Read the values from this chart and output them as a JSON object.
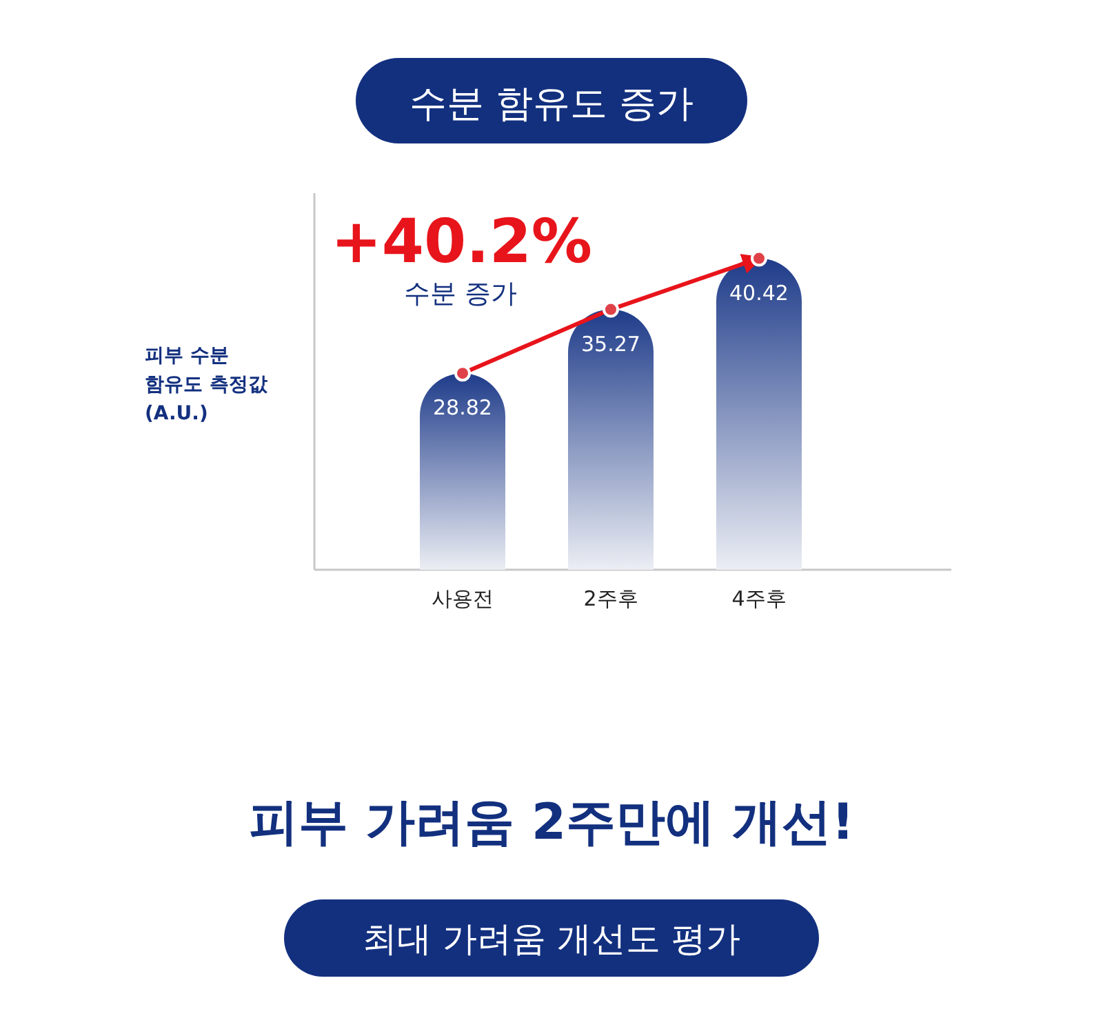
{
  "chart_data": {
    "type": "bar",
    "title": "수분 함유도 증가",
    "ylabel": "피부 수분\n함유도 측정값\n(A.U.)",
    "categories": [
      "사용전",
      "2주후",
      "4주후"
    ],
    "values": [
      28.82,
      35.27,
      40.42
    ],
    "color": "#1f3c8a",
    "ylim": [
      9,
      47
    ],
    "data_labels": true,
    "annotations": [
      "+40.2%",
      "수분 증가",
      "피부 가려움 2주만에 개선!",
      "최대 가려움 개선도 평가"
    ]
  }
}
